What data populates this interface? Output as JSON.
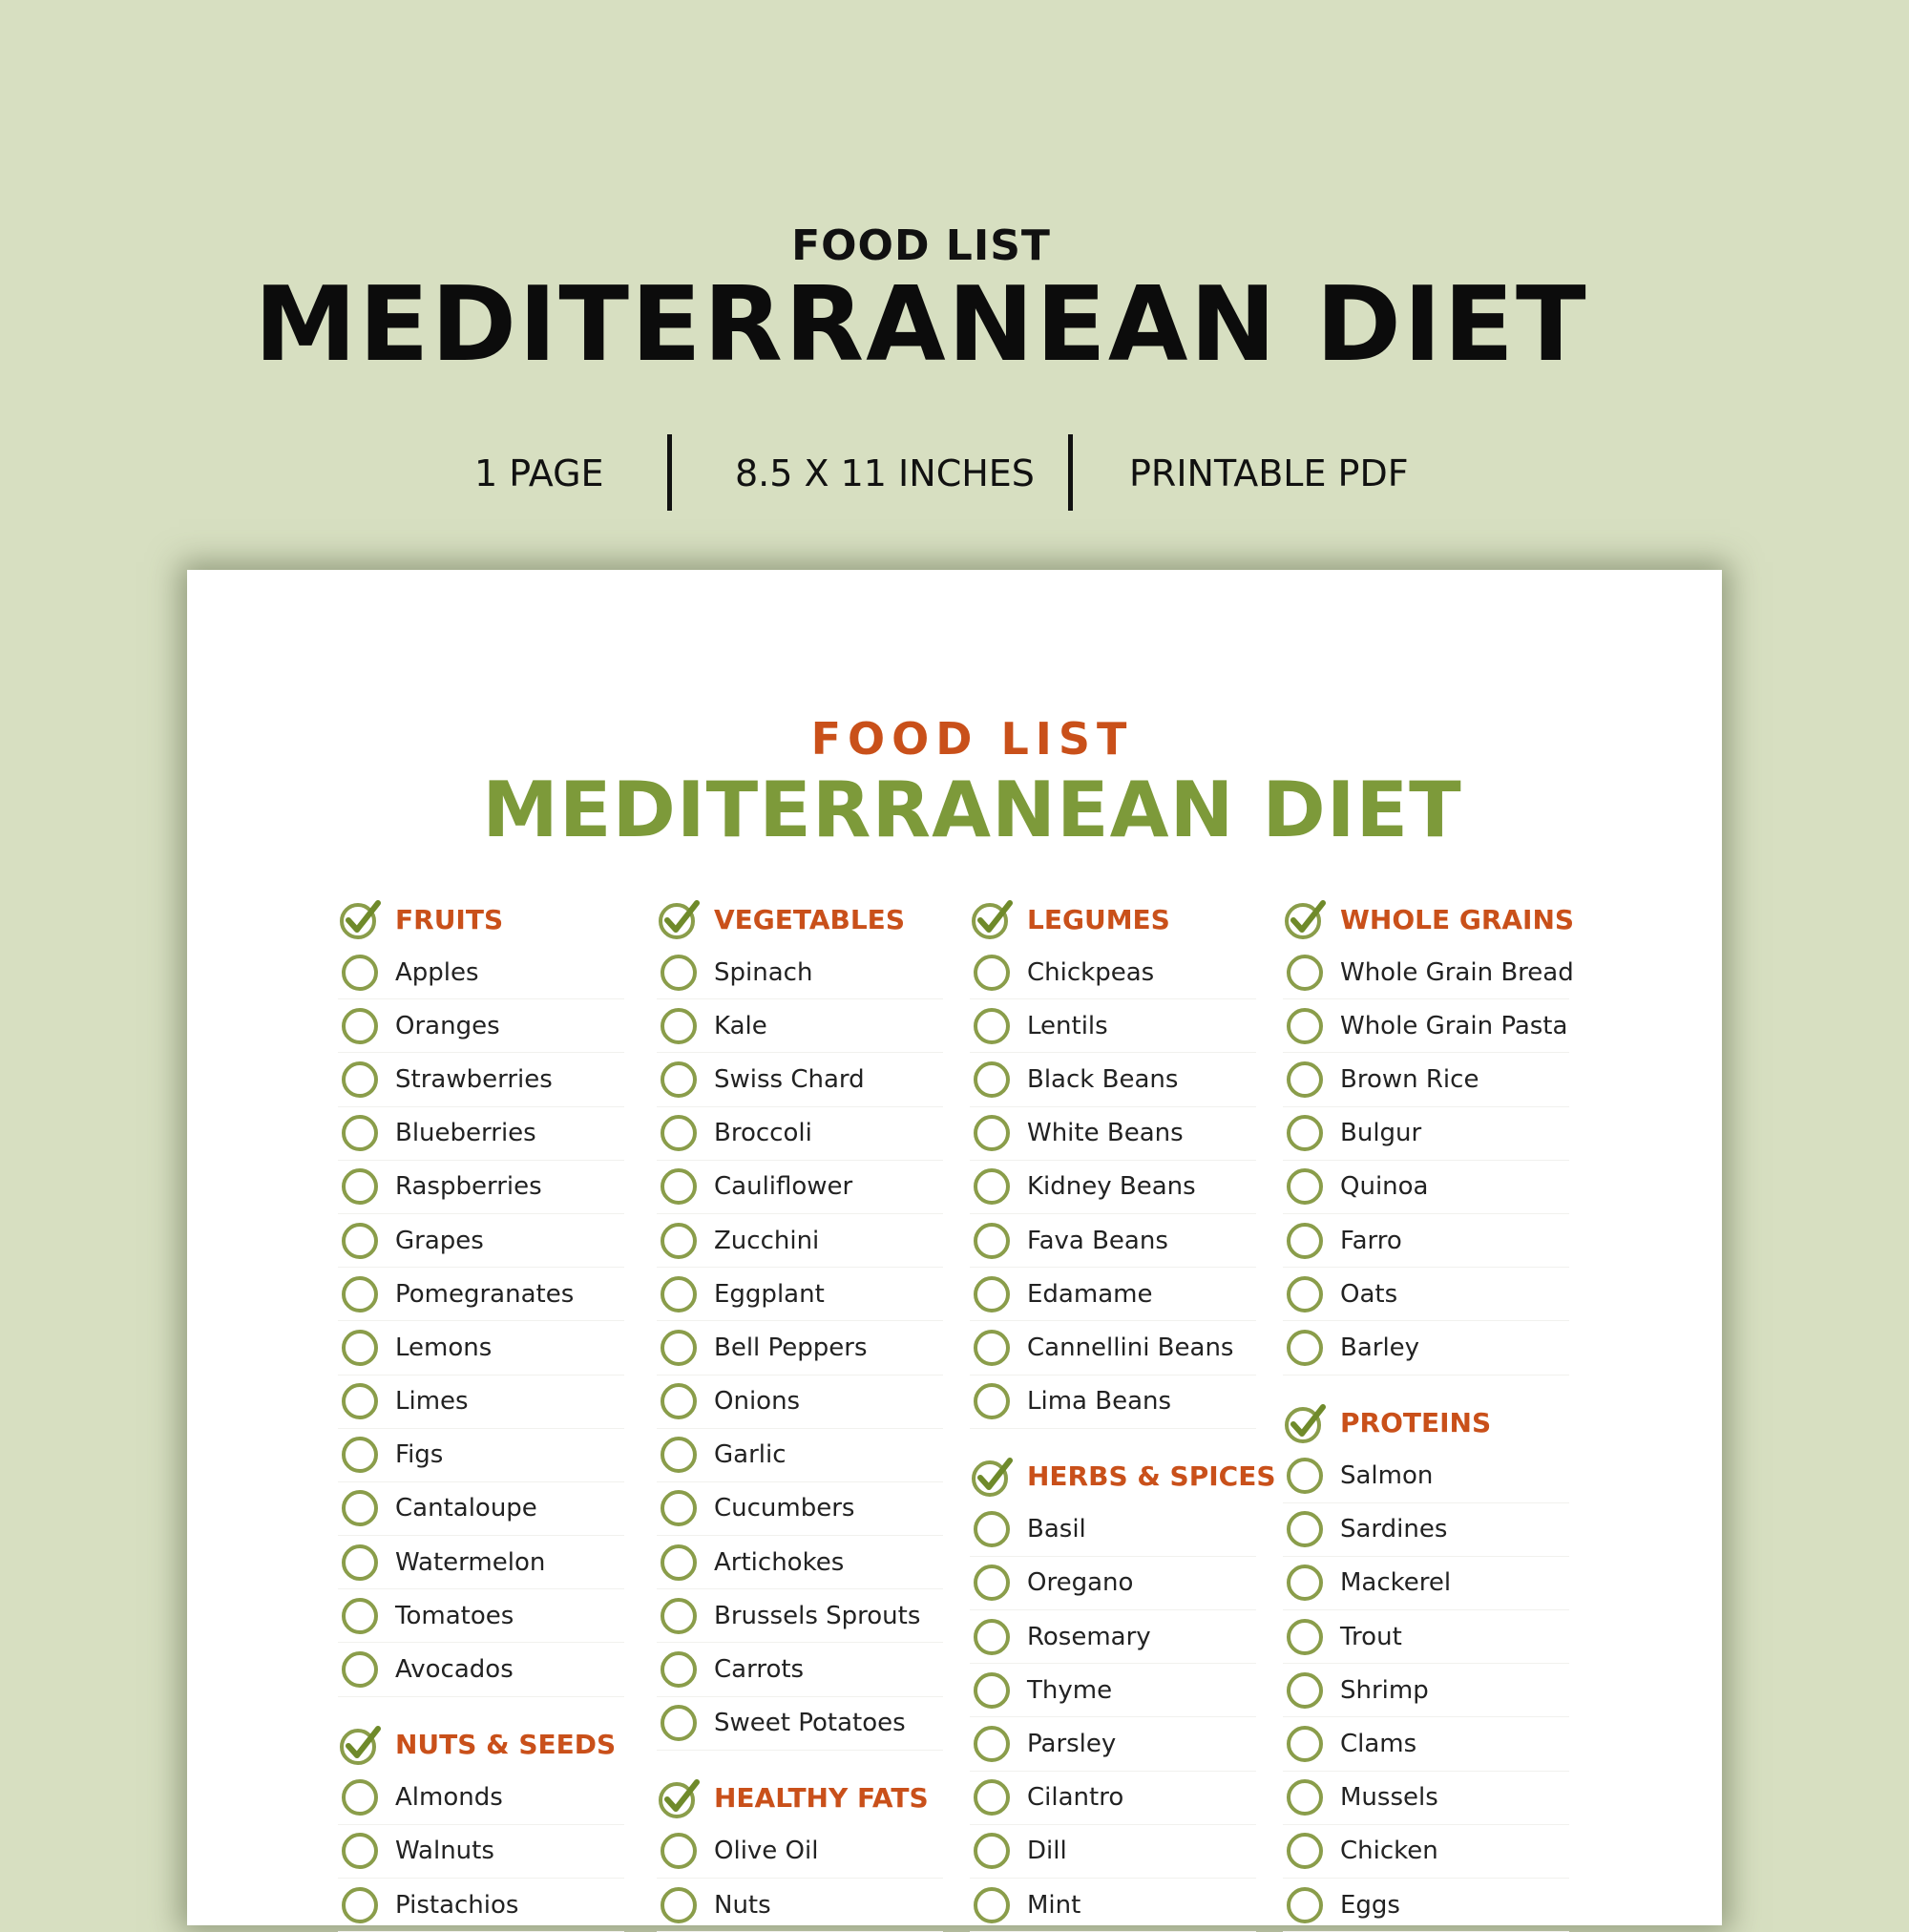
{
  "header": {
    "kicker": "FOOD LIST",
    "title": "MEDITERRANEAN DIET",
    "meta": [
      "1 PAGE",
      "8.5 X 11 INCHES",
      "PRINTABLE PDF"
    ]
  },
  "sheet": {
    "kicker": "FOOD LIST",
    "title": "MEDITERRANEAN DIET",
    "columns": [
      [
        {
          "title": "FRUITS",
          "items": [
            "Apples",
            "Oranges",
            "Strawberries",
            "Blueberries",
            "Raspberries",
            "Grapes",
            "Pomegranates",
            "Lemons",
            "Limes",
            "Figs",
            "Cantaloupe",
            "Watermelon",
            "Tomatoes",
            "Avocados"
          ]
        },
        {
          "title": "NUTS & SEEDS",
          "items": [
            "Almonds",
            "Walnuts",
            "Pistachios"
          ]
        }
      ],
      [
        {
          "title": "VEGETABLES",
          "items": [
            "Spinach",
            "Kale",
            "Swiss Chard",
            "Broccoli",
            "Cauliflower",
            "Zucchini",
            "Eggplant",
            "Bell Peppers",
            "Onions",
            "Garlic",
            "Cucumbers",
            "Artichokes",
            "Brussels Sprouts",
            "Carrots",
            "Sweet Potatoes"
          ]
        },
        {
          "title": "HEALTHY FATS",
          "items": [
            "Olive Oil",
            "Nuts"
          ]
        }
      ],
      [
        {
          "title": "LEGUMES",
          "items": [
            "Chickpeas",
            "Lentils",
            "Black Beans",
            "White Beans",
            "Kidney Beans",
            "Fava Beans",
            "Edamame",
            "Cannellini Beans",
            "Lima Beans"
          ]
        },
        {
          "title": "HERBS & SPICES",
          "items": [
            "Basil",
            "Oregano",
            "Rosemary",
            "Thyme",
            "Parsley",
            "Cilantro",
            "Dill",
            "Mint"
          ]
        }
      ],
      [
        {
          "title": "WHOLE GRAINS",
          "items": [
            "Whole Grain Bread",
            "Whole Grain Pasta",
            "Brown Rice",
            "Bulgur",
            "Quinoa",
            "Farro",
            "Oats",
            "Barley"
          ]
        },
        {
          "title": "PROTEINS",
          "items": [
            "Salmon",
            "Sardines",
            "Mackerel",
            "Trout",
            "Shrimp",
            "Clams",
            "Mussels",
            "Chicken",
            "Eggs"
          ]
        }
      ]
    ]
  },
  "colors": {
    "background": "#d7dfc1",
    "accent_orange": "#c9501a",
    "accent_green": "#7d9a3a"
  },
  "icons": {
    "section_marker": "checkmark-circle-icon",
    "item_marker": "empty-circle-icon"
  }
}
